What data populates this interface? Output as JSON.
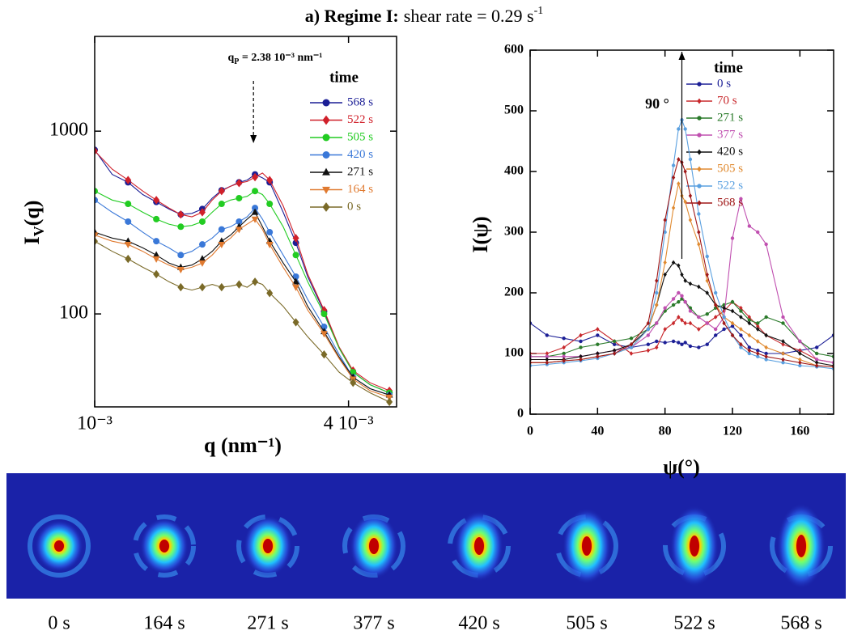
{
  "figure_title": {
    "bold": "a) Regime I:",
    "text": "shear rate = 0.29 s",
    "sup": "-1"
  },
  "chart_data": [
    {
      "type": "line",
      "xscale": "log",
      "yscale": "log",
      "xlabel": "q (nm⁻¹)",
      "ylabel": [
        "I",
        "V",
        "(q)"
      ],
      "xlim": [
        0.001,
        0.0052
      ],
      "ylim": [
        31,
        3300
      ],
      "xticks": [
        {
          "value": 0.001,
          "label": "10⁻³"
        },
        {
          "value": 0.004,
          "label": "4 10⁻³"
        }
      ],
      "yticks": [
        100,
        1000
      ],
      "annotation": {
        "text": [
          "q",
          "P",
          " = 2.38 10⁻³ nm⁻¹"
        ],
        "x": 0.00238
      },
      "legend_title": "time",
      "x": [
        0.001,
        0.0011,
        0.0012,
        0.0013,
        0.0014,
        0.0015,
        0.0016,
        0.0017,
        0.0018,
        0.0019,
        0.002,
        0.0021,
        0.0022,
        0.0023,
        0.0024,
        0.0025,
        0.0026,
        0.0028,
        0.003,
        0.0032,
        0.0035,
        0.0038,
        0.0041,
        0.0045,
        0.005
      ],
      "series": [
        {
          "name": "568 s",
          "color": "#1c1f96",
          "marker": "circle",
          "values": [
            790,
            580,
            525,
            450,
            410,
            375,
            350,
            355,
            375,
            430,
            475,
            500,
            525,
            540,
            580,
            555,
            525,
            360,
            245,
            160,
            103,
            65,
            48,
            41,
            37
          ]
        },
        {
          "name": "522 s",
          "color": "#d0202a",
          "marker": "diamond",
          "values": [
            780,
            620,
            540,
            470,
            420,
            380,
            350,
            340,
            360,
            420,
            470,
            500,
            520,
            530,
            560,
            590,
            540,
            390,
            260,
            165,
            105,
            66,
            49,
            42,
            38
          ]
        },
        {
          "name": "505 s",
          "color": "#22cc22",
          "marker": "circle",
          "values": [
            470,
            420,
            400,
            360,
            330,
            310,
            300,
            305,
            320,
            360,
            400,
            420,
            430,
            440,
            470,
            450,
            400,
            300,
            210,
            150,
            100,
            65,
            48,
            41,
            37
          ]
        },
        {
          "name": "420 s",
          "color": "#3a78d8",
          "marker": "circle",
          "values": [
            420,
            360,
            320,
            280,
            250,
            230,
            210,
            220,
            240,
            260,
            290,
            300,
            320,
            340,
            380,
            330,
            280,
            210,
            160,
            120,
            85,
            60,
            45,
            39,
            36
          ]
        },
        {
          "name": "271 s",
          "color": "#111111",
          "marker": "triangle",
          "values": [
            280,
            260,
            250,
            230,
            210,
            190,
            180,
            185,
            200,
            220,
            250,
            270,
            300,
            330,
            360,
            300,
            250,
            190,
            150,
            110,
            80,
            58,
            45,
            39,
            36
          ]
        },
        {
          "name": "164 s",
          "color": "#e07a30",
          "marker": "triangle-down",
          "values": [
            270,
            250,
            240,
            220,
            200,
            185,
            175,
            180,
            190,
            210,
            240,
            260,
            290,
            310,
            330,
            290,
            240,
            180,
            140,
            105,
            78,
            57,
            44,
            38,
            35
          ]
        },
        {
          "name": "0 s",
          "color": "#7a6a28",
          "marker": "diamond",
          "values": [
            250,
            220,
            200,
            180,
            165,
            150,
            140,
            135,
            140,
            145,
            140,
            142,
            145,
            140,
            150,
            145,
            130,
            110,
            90,
            75,
            60,
            48,
            42,
            37,
            33
          ]
        }
      ]
    },
    {
      "type": "line",
      "xscale": "linear",
      "yscale": "linear",
      "xlabel": "ψ(°)",
      "ylabel": [
        "I(ψ)"
      ],
      "xlim": [
        0,
        180
      ],
      "ylim": [
        0,
        600
      ],
      "xticks": [
        0,
        40,
        80,
        120,
        160
      ],
      "yticks": [
        0,
        100,
        200,
        300,
        400,
        500,
        600
      ],
      "annotation": {
        "text": [
          "90 °"
        ],
        "x": 90
      },
      "legend_title": "time",
      "x": [
        0,
        10,
        20,
        30,
        40,
        50,
        60,
        70,
        75,
        80,
        85,
        88,
        90,
        92,
        95,
        100,
        105,
        110,
        115,
        120,
        125,
        130,
        135,
        140,
        150,
        160,
        170,
        180
      ],
      "series": [
        {
          "name": "0 s",
          "color": "#1c1f96",
          "marker": "circle",
          "values": [
            150,
            130,
            125,
            120,
            130,
            115,
            110,
            115,
            120,
            118,
            120,
            118,
            115,
            118,
            112,
            110,
            115,
            130,
            140,
            145,
            130,
            110,
            105,
            100,
            100,
            105,
            110,
            130
          ]
        },
        {
          "name": "70 s",
          "color": "#c8282c",
          "marker": "diamond",
          "values": [
            100,
            100,
            110,
            130,
            140,
            120,
            100,
            105,
            110,
            140,
            150,
            160,
            155,
            150,
            150,
            140,
            150,
            160,
            170,
            185,
            175,
            160,
            145,
            130,
            115,
            105,
            90,
            85
          ]
        },
        {
          "name": "271 s",
          "color": "#2a7a2a",
          "marker": "circle",
          "values": [
            95,
            95,
            100,
            110,
            115,
            120,
            125,
            140,
            150,
            170,
            180,
            185,
            190,
            185,
            175,
            160,
            165,
            175,
            180,
            185,
            170,
            155,
            150,
            160,
            150,
            120,
            100,
            95
          ]
        },
        {
          "name": "377 s",
          "color": "#c050b0",
          "marker": "circle",
          "values": [
            95,
            95,
            95,
            95,
            100,
            105,
            110,
            130,
            150,
            175,
            190,
            200,
            195,
            185,
            170,
            160,
            150,
            140,
            160,
            290,
            355,
            310,
            300,
            280,
            160,
            120,
            90,
            85
          ]
        },
        {
          "name": "420 s",
          "color": "#111111",
          "marker": "diamond",
          "values": [
            90,
            90,
            90,
            95,
            100,
            105,
            115,
            140,
            180,
            230,
            250,
            245,
            230,
            220,
            215,
            210,
            200,
            180,
            175,
            170,
            160,
            150,
            140,
            130,
            120,
            100,
            85,
            80
          ]
        },
        {
          "name": "505 s",
          "color": "#e08a30",
          "marker": "diamond",
          "values": [
            85,
            85,
            88,
            90,
            95,
            100,
            110,
            140,
            180,
            250,
            340,
            380,
            360,
            350,
            320,
            280,
            220,
            180,
            160,
            150,
            140,
            130,
            120,
            110,
            100,
            90,
            80,
            78
          ]
        },
        {
          "name": "522 s",
          "color": "#5aa0e0",
          "marker": "circle",
          "values": [
            80,
            82,
            85,
            88,
            92,
            100,
            110,
            140,
            200,
            300,
            410,
            470,
            485,
            470,
            420,
            330,
            260,
            200,
            160,
            130,
            110,
            100,
            95,
            90,
            85,
            80,
            78,
            75
          ]
        },
        {
          "name": "568 s",
          "color": "#a01818",
          "marker": "diamond",
          "values": [
            85,
            85,
            88,
            90,
            95,
            100,
            115,
            150,
            220,
            320,
            390,
            420,
            415,
            400,
            360,
            300,
            230,
            180,
            150,
            130,
            115,
            105,
            100,
            95,
            90,
            85,
            80,
            78
          ]
        }
      ]
    }
  ],
  "image_strip": {
    "labels": [
      "0 s",
      "164 s",
      "271 s",
      "377 s",
      "420 s",
      "505 s",
      "522 s",
      "568 s"
    ]
  }
}
